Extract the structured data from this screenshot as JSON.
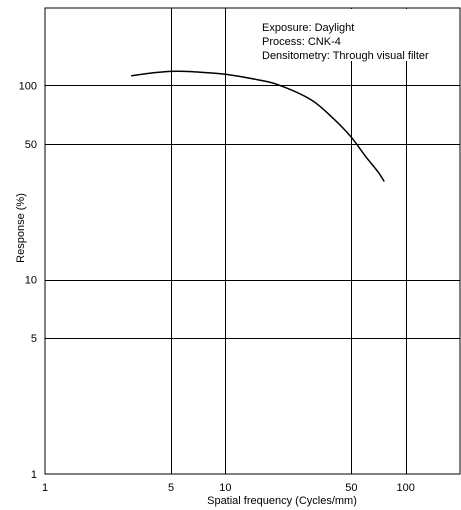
{
  "chart_data": {
    "type": "line",
    "title": "",
    "xlabel": "Spatial frequency (Cycles/mm)",
    "ylabel": "Response (%)",
    "x_scale": "log",
    "y_scale": "log",
    "xlim": [
      1,
      200
    ],
    "ylim": [
      1,
      250
    ],
    "x_ticks": [
      {
        "value": 1,
        "label": "1"
      },
      {
        "value": 5,
        "label": "5"
      },
      {
        "value": 10,
        "label": "10"
      },
      {
        "value": 50,
        "label": "50"
      },
      {
        "value": 100,
        "label": "100"
      }
    ],
    "y_ticks": [
      {
        "value": 1,
        "label": "1"
      },
      {
        "value": 5,
        "label": "5"
      },
      {
        "value": 10,
        "label": "10"
      },
      {
        "value": 50,
        "label": "50"
      },
      {
        "value": 100,
        "label": "100"
      }
    ],
    "grid": true,
    "annotations": [
      "Exposure: Daylight",
      "Process: CNK-4",
      "Densitometry: Through visual filter"
    ],
    "series": [
      {
        "color": "#000000",
        "points": [
          {
            "x": 3,
            "y": 112
          },
          {
            "x": 4,
            "y": 116
          },
          {
            "x": 5,
            "y": 118
          },
          {
            "x": 6,
            "y": 118
          },
          {
            "x": 8,
            "y": 116
          },
          {
            "x": 10,
            "y": 114
          },
          {
            "x": 15,
            "y": 107
          },
          {
            "x": 20,
            "y": 100
          },
          {
            "x": 30,
            "y": 84
          },
          {
            "x": 40,
            "y": 67
          },
          {
            "x": 50,
            "y": 54
          },
          {
            "x": 60,
            "y": 43
          },
          {
            "x": 70,
            "y": 36
          },
          {
            "x": 76,
            "y": 32
          }
        ]
      }
    ]
  },
  "colors": {
    "background": "#ffffff",
    "grid": "#000000",
    "curve": "#000000"
  }
}
